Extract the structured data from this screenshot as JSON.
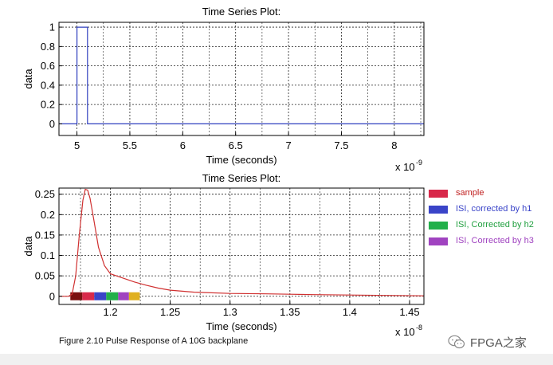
{
  "chart_data": [
    {
      "type": "line",
      "title": "Time Series Plot:",
      "xlabel": "Time (seconds)",
      "ylabel": "data",
      "x_exponent_label": "x 10",
      "x_exponent_power": "-9",
      "xlim": [
        4.83,
        8.28
      ],
      "ylim": [
        -0.12,
        1.05
      ],
      "xticks": [
        5,
        5.5,
        6,
        6.5,
        7,
        7.5,
        8
      ],
      "xtick_labels": [
        "5",
        "5.5",
        "6",
        "6.5",
        "7",
        "7.5",
        "8"
      ],
      "yticks": [
        0,
        0.2,
        0.4,
        0.6,
        0.8,
        1
      ],
      "ytick_labels": [
        "0",
        "0.2",
        "0.4",
        "0.6",
        "0.8",
        "1"
      ],
      "grid": true,
      "series": [
        {
          "color": "#2f3fbf",
          "x": [
            4.83,
            5.0,
            5.0,
            5.1,
            5.1,
            8.28
          ],
          "y": [
            0,
            0,
            1,
            1,
            0,
            0
          ]
        }
      ]
    },
    {
      "type": "line",
      "title": "Time Series Plot:",
      "xlabel": "Time (seconds)",
      "ylabel": "data",
      "x_exponent_label": "x 10",
      "x_exponent_power": "-8",
      "xlim": [
        1.157,
        1.462
      ],
      "ylim": [
        -0.02,
        0.265
      ],
      "xticks": [
        1.2,
        1.25,
        1.3,
        1.35,
        1.4,
        1.45
      ],
      "xtick_labels": [
        "1.2",
        "1.25",
        "1.3",
        "1.35",
        "1.4",
        "1.45"
      ],
      "yticks": [
        0,
        0.05,
        0.1,
        0.15,
        0.2,
        0.25
      ],
      "ytick_labels": [
        "0",
        "0.05",
        "0.1",
        "0.15",
        "0.2",
        "0.25"
      ],
      "grid": true,
      "series": [
        {
          "color": "#d03030",
          "x": [
            1.157,
            1.165,
            1.168,
            1.171,
            1.174,
            1.177,
            1.179,
            1.181,
            1.183,
            1.186,
            1.19,
            1.195,
            1.2,
            1.21,
            1.22,
            1.23,
            1.24,
            1.25,
            1.27,
            1.3,
            1.33,
            1.35,
            1.37,
            1.4,
            1.43,
            1.462
          ],
          "y": [
            0,
            0,
            0.005,
            0.05,
            0.15,
            0.235,
            0.262,
            0.26,
            0.24,
            0.19,
            0.12,
            0.075,
            0.055,
            0.045,
            0.035,
            0.027,
            0.02,
            0.015,
            0.01,
            0.007,
            0.006,
            0.005,
            0.004,
            0.003,
            0.002,
            0.001
          ]
        }
      ],
      "markers": [
        {
          "name": "sample",
          "color": "#7a1010",
          "x_start": 1.1665,
          "x_end": 1.1765
        },
        {
          "name": "sample",
          "color": "#d8284a",
          "x_start": 1.1765,
          "x_end": 1.1865
        },
        {
          "name": "ISI, corrected by h1",
          "color": "#3a44c8",
          "x_start": 1.1865,
          "x_end": 1.1965
        },
        {
          "name": "ISI, Corrected by h2",
          "color": "#22b04a",
          "x_start": 1.1965,
          "x_end": 1.2065
        },
        {
          "name": "ISI, Corrected by h3",
          "color": "#a043c0",
          "x_start": 1.2065,
          "x_end": 1.2155
        },
        {
          "name": "",
          "color": "#e0b020",
          "x_start": 1.2155,
          "x_end": 1.2245
        }
      ]
    }
  ],
  "legend": {
    "placement": "right of lower plot",
    "items": [
      {
        "label": "sample",
        "color": "#d8284a",
        "text_color": "#c02020"
      },
      {
        "label": "ISI, corrected by h1",
        "color": "#3a44c8",
        "text_color": "#3a44c8"
      },
      {
        "label": "ISI, Corrected by h2",
        "color": "#22b04a",
        "text_color": "#22a040"
      },
      {
        "label": "ISI, Corrected by h3",
        "color": "#a043c0",
        "text_color": "#a043c0"
      }
    ]
  },
  "caption": "Figure 2.10 Pulse Response of A 10G backplane",
  "watermark": {
    "text": "FPGA之家",
    "icon": "wechat-icon"
  }
}
